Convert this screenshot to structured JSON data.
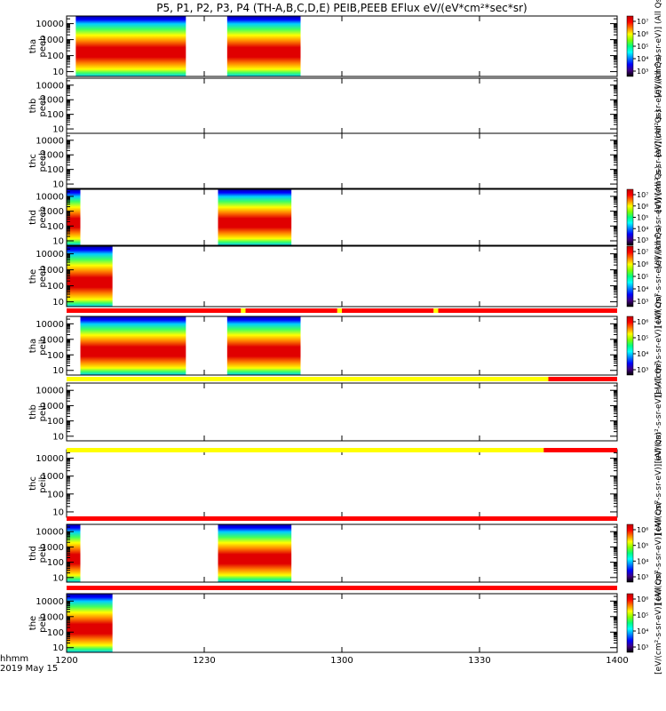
{
  "title": "P5, P1, P2, P3, P4 (TH-A,B,C,D,E) PEIB,PEEB EFlux eV/(eV*cm²*sec*sr)",
  "colors": {
    "spectro": [
      "#0000a0",
      "#0000ff",
      "#0080ff",
      "#00d0ff",
      "#00ffc0",
      "#40ff60",
      "#b0ff00",
      "#ffff00",
      "#ffc000",
      "#ff8000",
      "#ff3000",
      "#e00000",
      "#c00000"
    ],
    "flag_red": "#ff0000",
    "flag_yellow": "#ffff00"
  },
  "chart_data": {
    "type": "heatmap",
    "x_unit": "hhmm",
    "date_label": "2019 May 15",
    "x_range": [
      "1200",
      "1400"
    ],
    "x_ticks": [
      "1200",
      "1230",
      "1300",
      "1330",
      "1400"
    ],
    "y_ticks": [
      "10",
      "100",
      "1000",
      "10000"
    ],
    "panels": [
      {
        "label1": "tha",
        "label2": "peeb",
        "blocks": [
          {
            "start": "1202",
            "end": "1226"
          },
          {
            "start": "1235",
            "end": "1251"
          }
        ],
        "colorbar": {
          "ticks": [
            "10³",
            "10⁴",
            "10⁵",
            "10⁶",
            "10⁷"
          ],
          "label": "[eV/(cm²-s-sr-eV)] (All Qs)"
        }
      },
      {
        "label1": "thb",
        "label2": "peeb",
        "blocks": [],
        "colorbar": {
          "ticks": [],
          "label": "[eV/(cm²-s-sr-eV)] (All Qs)"
        }
      },
      {
        "label1": "thc",
        "label2": "peeb",
        "blocks": [],
        "colorbar": {
          "ticks": [],
          "label": "[eV/(cm²-s-sr-eV)] (All Qs)"
        }
      },
      {
        "label1": "thd",
        "label2": "peeb",
        "blocks": [
          {
            "start": "1200",
            "end": "1203"
          },
          {
            "start": "1233",
            "end": "1249"
          }
        ],
        "colorbar": {
          "ticks": [
            "10³",
            "10⁴",
            "10⁵",
            "10⁶",
            "10⁷"
          ],
          "label": "[eV/(cm²-s-sr-eV)] (All Qs)"
        }
      },
      {
        "label1": "the",
        "label2": "peeb",
        "blocks": [
          {
            "start": "1200",
            "end": "1210"
          }
        ],
        "colorbar": {
          "ticks": [
            "10³",
            "10⁴",
            "10⁵",
            "10⁶",
            "10⁷"
          ],
          "label": "[eV/(cm²-s-sr-eV)] (All Qs)"
        }
      },
      {
        "label1": "tha",
        "label2": "peib",
        "blocks": [
          {
            "start": "1203",
            "end": "1226"
          },
          {
            "start": "1235",
            "end": "1251"
          }
        ],
        "colorbar": {
          "ticks": [
            "10³",
            "10⁴",
            "10⁵",
            "10⁶"
          ],
          "label": "[eV/(cm²-s-sr-eV)] (All Qs)"
        }
      },
      {
        "label1": "thb",
        "label2": "peib",
        "blocks": [],
        "colorbar": {
          "ticks": [],
          "label": "[eV/(cm²-s-sr-eV)] (All Qs)"
        }
      },
      {
        "label1": "thc",
        "label2": "peib",
        "blocks": [],
        "colorbar": {
          "ticks": [],
          "label": "[eV/(cm²-s-sr-eV)] (All Qs)"
        }
      },
      {
        "label1": "thd",
        "label2": "peib",
        "blocks": [
          {
            "start": "1200",
            "end": "1203"
          },
          {
            "start": "1233",
            "end": "1249"
          }
        ],
        "colorbar": {
          "ticks": [
            "10³",
            "10⁴",
            "10⁵",
            "10⁶"
          ],
          "label": "[eV/(cm²-s-sr-eV)] (All Qs)"
        }
      },
      {
        "label1": "the",
        "label2": "peib",
        "blocks": [
          {
            "start": "1200",
            "end": "1210"
          }
        ],
        "colorbar": {
          "ticks": [
            "10³",
            "10⁴",
            "10⁵",
            "10⁶"
          ],
          "label": "[eV/(cm²-s-sr-eV)] (All Qs)"
        }
      }
    ],
    "flag_bars": [
      {
        "after_panel": 4,
        "segments": [
          {
            "start": "1200",
            "end": "1238",
            "color": "red"
          },
          {
            "start": "1238",
            "end": "1239",
            "color": "yellow"
          },
          {
            "start": "1239",
            "end": "1259",
            "color": "red"
          },
          {
            "start": "1259",
            "end": "1300",
            "color": "yellow"
          },
          {
            "start": "1300",
            "end": "1320",
            "color": "red"
          },
          {
            "start": "1320",
            "end": "1321",
            "color": "yellow"
          },
          {
            "start": "1321",
            "end": "1400",
            "color": "red"
          }
        ]
      },
      {
        "after_panel": 5,
        "segments": [
          {
            "start": "1200",
            "end": "1345",
            "color": "yellow"
          },
          {
            "start": "1345",
            "end": "1400",
            "color": "red"
          }
        ]
      },
      {
        "after_panel": 6,
        "segments": [
          {
            "start": "1200",
            "end": "1344",
            "color": "yellow"
          },
          {
            "start": "1344",
            "end": "1400",
            "color": "red"
          }
        ]
      },
      {
        "after_panel": 7,
        "segments": [
          {
            "start": "1200",
            "end": "1400",
            "color": "red"
          }
        ]
      },
      {
        "after_panel": 8,
        "segments": [
          {
            "start": "1200",
            "end": "1400",
            "color": "red"
          }
        ]
      }
    ]
  }
}
